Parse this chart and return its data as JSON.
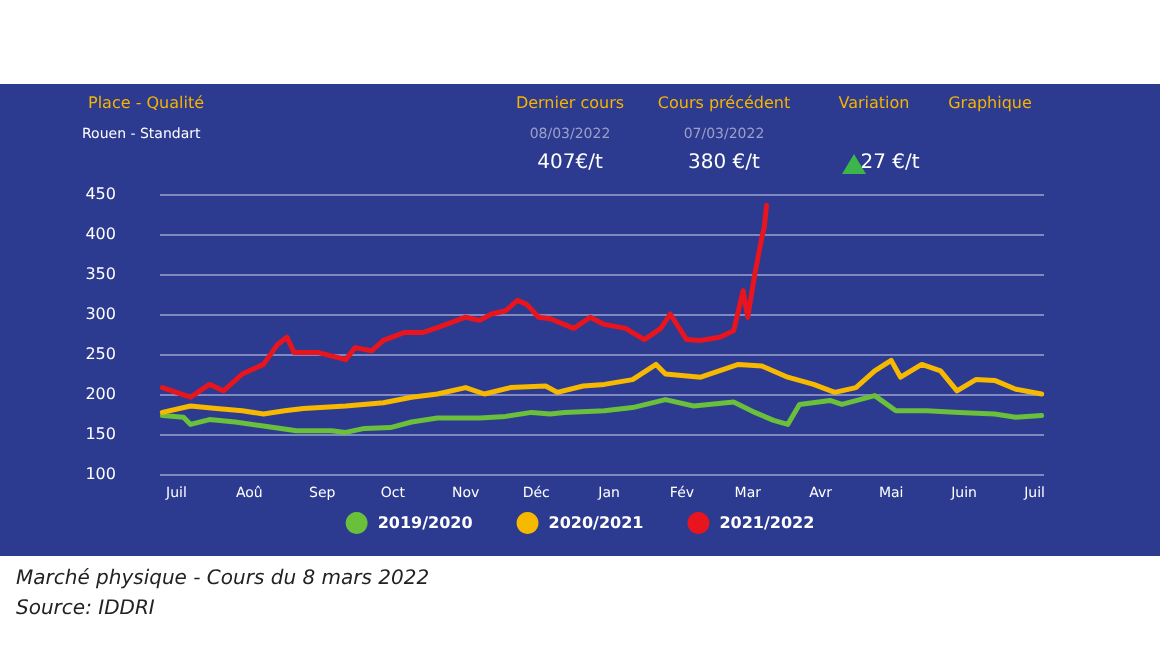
{
  "chart_data": {
    "type": "line",
    "xlim": [
      "2021-06-24",
      "2022-07-05"
    ],
    "xticks": [
      {
        "value": "2021-07-01",
        "label": "Juil"
      },
      {
        "value": "2021-08-01",
        "label": "Aoû"
      },
      {
        "value": "2021-09-01",
        "label": "Sep"
      },
      {
        "value": "2021-10-01",
        "label": "Oct"
      },
      {
        "value": "2021-11-01",
        "label": "Nov"
      },
      {
        "value": "2021-12-01",
        "label": "Déc"
      },
      {
        "value": "2022-01-01",
        "label": "Jan"
      },
      {
        "value": "2022-02-01",
        "label": "Fév"
      },
      {
        "value": "2022-03-01",
        "label": "Mar"
      },
      {
        "value": "2022-04-01",
        "label": "Avr"
      },
      {
        "value": "2022-05-01",
        "label": "Mai"
      },
      {
        "value": "2022-06-01",
        "label": "Juin"
      },
      {
        "value": "2022-07-01",
        "label": "Juil"
      }
    ],
    "ylim": [
      100,
      450
    ],
    "yticks": [
      100,
      150,
      200,
      250,
      300,
      350,
      400,
      450
    ],
    "grid": "y",
    "legend": "bottom",
    "marker": "none",
    "line_style": "solid",
    "series": [
      {
        "name": "2019/2020",
        "color": "#6abf3b",
        "x": [
          "2021-06-25",
          "2021-07-04",
          "2021-07-07",
          "2021-07-15",
          "2021-07-26",
          "2021-08-07",
          "2021-08-21",
          "2021-09-05",
          "2021-09-11",
          "2021-09-19",
          "2021-09-30",
          "2021-10-09",
          "2021-10-20",
          "2021-11-07",
          "2021-11-18",
          "2021-11-29",
          "2021-12-07",
          "2021-12-13",
          "2021-12-30",
          "2022-01-11",
          "2022-01-25",
          "2022-02-06",
          "2022-02-23",
          "2022-03-04",
          "2022-03-12",
          "2022-03-18",
          "2022-03-23",
          "2022-04-05",
          "2022-04-10",
          "2022-04-24",
          "2022-05-03",
          "2022-05-16",
          "2022-05-30",
          "2022-06-14",
          "2022-06-23",
          "2022-07-04"
        ],
        "values": [
          173,
          171,
          162,
          168,
          165,
          160,
          154,
          154,
          152,
          157,
          158,
          165,
          170,
          170,
          172,
          177,
          175,
          177,
          179,
          183,
          193,
          185,
          190,
          177,
          167,
          162,
          187,
          192,
          187,
          198,
          179,
          179,
          177,
          175,
          171,
          173
        ]
      },
      {
        "name": "2020/2021",
        "color": "#f7b800",
        "x": [
          "2021-06-25",
          "2021-07-07",
          "2021-07-18",
          "2021-07-29",
          "2021-08-07",
          "2021-08-16",
          "2021-08-24",
          "2021-09-11",
          "2021-09-27",
          "2021-10-09",
          "2021-10-20",
          "2021-11-01",
          "2021-11-09",
          "2021-11-20",
          "2021-12-05",
          "2021-12-10",
          "2021-12-21",
          "2021-12-30",
          "2022-01-11",
          "2022-01-21",
          "2022-01-25",
          "2022-02-09",
          "2022-02-25",
          "2022-03-07",
          "2022-03-18",
          "2022-03-29",
          "2022-04-07",
          "2022-04-16",
          "2022-04-24",
          "2022-05-01",
          "2022-05-05",
          "2022-05-14",
          "2022-05-22",
          "2022-05-29",
          "2022-06-06",
          "2022-06-14",
          "2022-06-23",
          "2022-07-04"
        ],
        "values": [
          177,
          185,
          182,
          179,
          175,
          179,
          182,
          185,
          189,
          196,
          200,
          208,
          200,
          208,
          210,
          202,
          210,
          212,
          218,
          237,
          225,
          221,
          237,
          235,
          221,
          212,
          202,
          208,
          229,
          242,
          221,
          237,
          229,
          204,
          218,
          217,
          206,
          200
        ]
      },
      {
        "name": "2021/2022",
        "color": "#e8151f",
        "x": [
          "2021-06-25",
          "2021-07-07",
          "2021-07-15",
          "2021-07-21",
          "2021-07-29",
          "2021-08-07",
          "2021-08-13",
          "2021-08-17",
          "2021-08-20",
          "2021-08-30",
          "2021-09-11",
          "2021-09-15",
          "2021-09-22",
          "2021-09-27",
          "2021-10-06",
          "2021-10-14",
          "2021-10-20",
          "2021-11-01",
          "2021-11-07",
          "2021-11-12",
          "2021-11-18",
          "2021-11-23",
          "2021-11-27",
          "2021-12-02",
          "2021-12-07",
          "2021-12-17",
          "2021-12-24",
          "2021-12-30",
          "2022-01-08",
          "2022-01-16",
          "2022-01-23",
          "2022-01-27",
          "2022-02-03",
          "2022-02-09",
          "2022-02-17",
          "2022-02-23",
          "2022-02-27",
          "2022-03-01",
          "2022-03-04",
          "2022-03-07",
          "2022-03-08",
          "2022-03-09"
        ],
        "values": [
          208,
          196,
          212,
          204,
          225,
          237,
          262,
          271,
          252,
          252,
          243,
          258,
          254,
          267,
          277,
          277,
          283,
          296,
          292,
          300,
          304,
          317,
          312,
          296,
          294,
          282,
          296,
          287,
          282,
          268,
          282,
          300,
          268,
          267,
          271,
          279,
          329,
          296,
          350,
          396,
          408,
          436
        ]
      }
    ],
    "annotations": [
      "Place - Qualité",
      "Dernier cours",
      "Cours précédent",
      "Variation",
      "Graphique",
      "Rouen - Standart",
      "08/03/2022",
      "07/03/2022",
      "407€/t",
      "380 €/t",
      "27 €/t",
      "Marché physique - Cours du 8 mars 2022",
      "Source: IDDRI"
    ]
  }
}
